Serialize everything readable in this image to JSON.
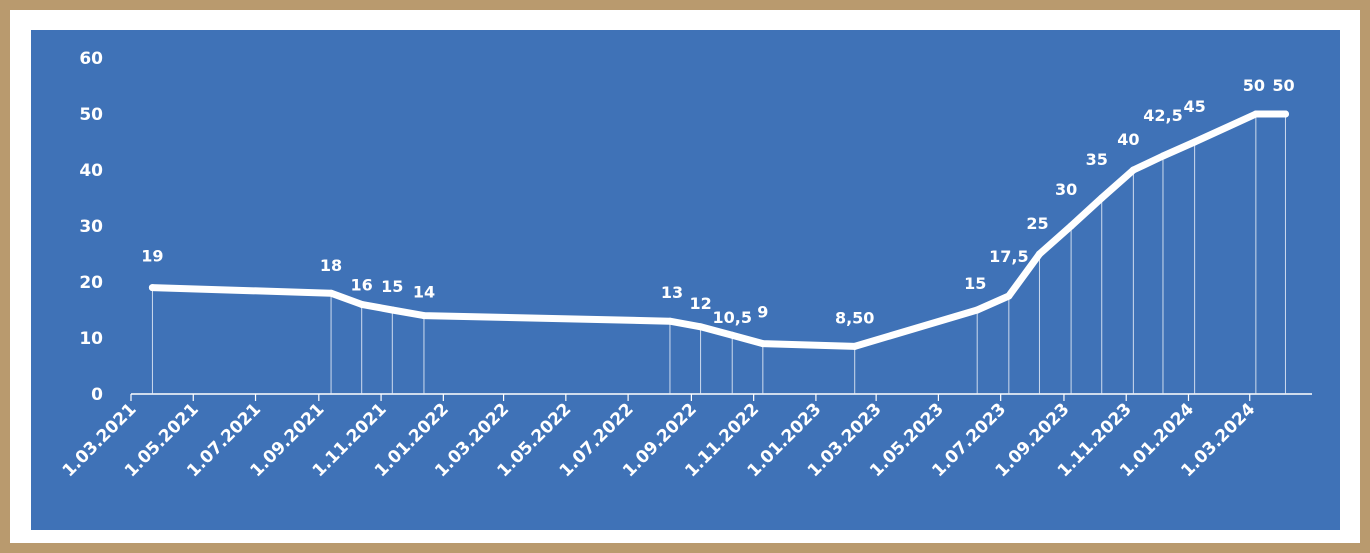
{
  "chart_data": {
    "type": "line",
    "title": "",
    "xlabel": "",
    "ylabel": "",
    "ylim": [
      0,
      60
    ],
    "y_ticks": [
      "0",
      "10",
      "20",
      "30",
      "40",
      "50",
      "60"
    ],
    "x_ticks": [
      "1.03.2021",
      "1.05.2021",
      "1.07.2021",
      "1.09.2021",
      "1.11.2021",
      "1.01.2022",
      "1.03.2022",
      "1.05.2022",
      "1.07.2022",
      "1.09.2022",
      "1.11.2022",
      "1.01.2023",
      "1.03.2023",
      "1.05.2023",
      "1.07.2023",
      "1.09.2023",
      "1.11.2023",
      "1.01.2024",
      "1.03.2024"
    ],
    "grid": false,
    "legend": "none",
    "line_color": "#ffffff",
    "background_color": "#3f72b7",
    "points": [
      {
        "x": "2021-03-22",
        "y": 19,
        "label": "19"
      },
      {
        "x": "2021-09-13",
        "y": 18,
        "label": "18"
      },
      {
        "x": "2021-10-13",
        "y": 16,
        "label": "16"
      },
      {
        "x": "2021-11-12",
        "y": 15,
        "label": "15"
      },
      {
        "x": "2021-12-13",
        "y": 14,
        "label": "14"
      },
      {
        "x": "2022-08-11",
        "y": 13,
        "label": "13"
      },
      {
        "x": "2022-09-10",
        "y": 12,
        "label": "12"
      },
      {
        "x": "2022-10-11",
        "y": 10.5,
        "label": "10,5"
      },
      {
        "x": "2022-11-10",
        "y": 9,
        "label": "9"
      },
      {
        "x": "2023-02-08",
        "y": 8.5,
        "label": "8,50"
      },
      {
        "x": "2023-06-08",
        "y": 15,
        "label": "15"
      },
      {
        "x": "2023-07-09",
        "y": 17.5,
        "label": "17,5"
      },
      {
        "x": "2023-08-08",
        "y": 25,
        "label": "25"
      },
      {
        "x": "2023-09-08",
        "y": 30,
        "label": "30"
      },
      {
        "x": "2023-10-08",
        "y": 35,
        "label": "35"
      },
      {
        "x": "2023-11-08",
        "y": 40,
        "label": "40"
      },
      {
        "x": "2023-12-07",
        "y": 42.5,
        "label": "42,5"
      },
      {
        "x": "2024-01-07",
        "y": 45,
        "label": "45"
      },
      {
        "x": "2024-03-07",
        "y": 50,
        "label": "50"
      },
      {
        "x": "2024-04-05",
        "y": 50,
        "label": "50"
      }
    ]
  }
}
